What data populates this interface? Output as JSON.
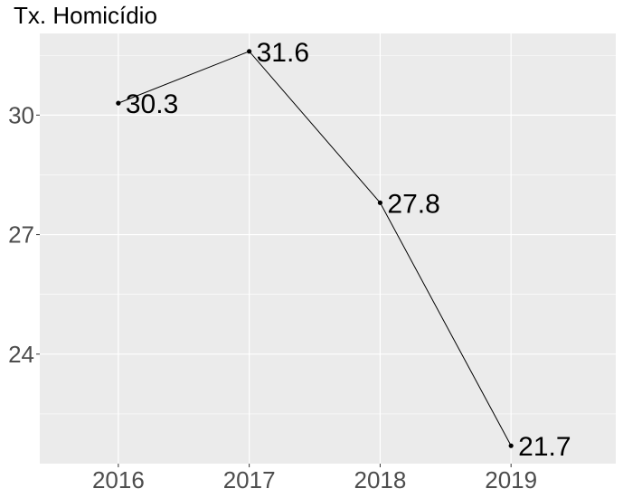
{
  "chart_data": {
    "type": "line",
    "title": "Tx. Homicídio",
    "xlabel": "",
    "ylabel": "",
    "categories": [
      "2016",
      "2017",
      "2018",
      "2019"
    ],
    "values": [
      30.3,
      31.6,
      27.8,
      21.7
    ],
    "data_labels": [
      "30.3",
      "31.6",
      "27.8",
      "21.7"
    ],
    "y_ticks": [
      24,
      27,
      30
    ],
    "y_tick_labels": [
      "24",
      "27",
      "30"
    ],
    "ylim": [
      21.25,
      32.05
    ],
    "grid": true,
    "legend": "none",
    "colors": {
      "panel": "#ebebeb",
      "grid": "#ffffff",
      "line": "#000000",
      "tick_text": "#4d4d4d"
    }
  }
}
